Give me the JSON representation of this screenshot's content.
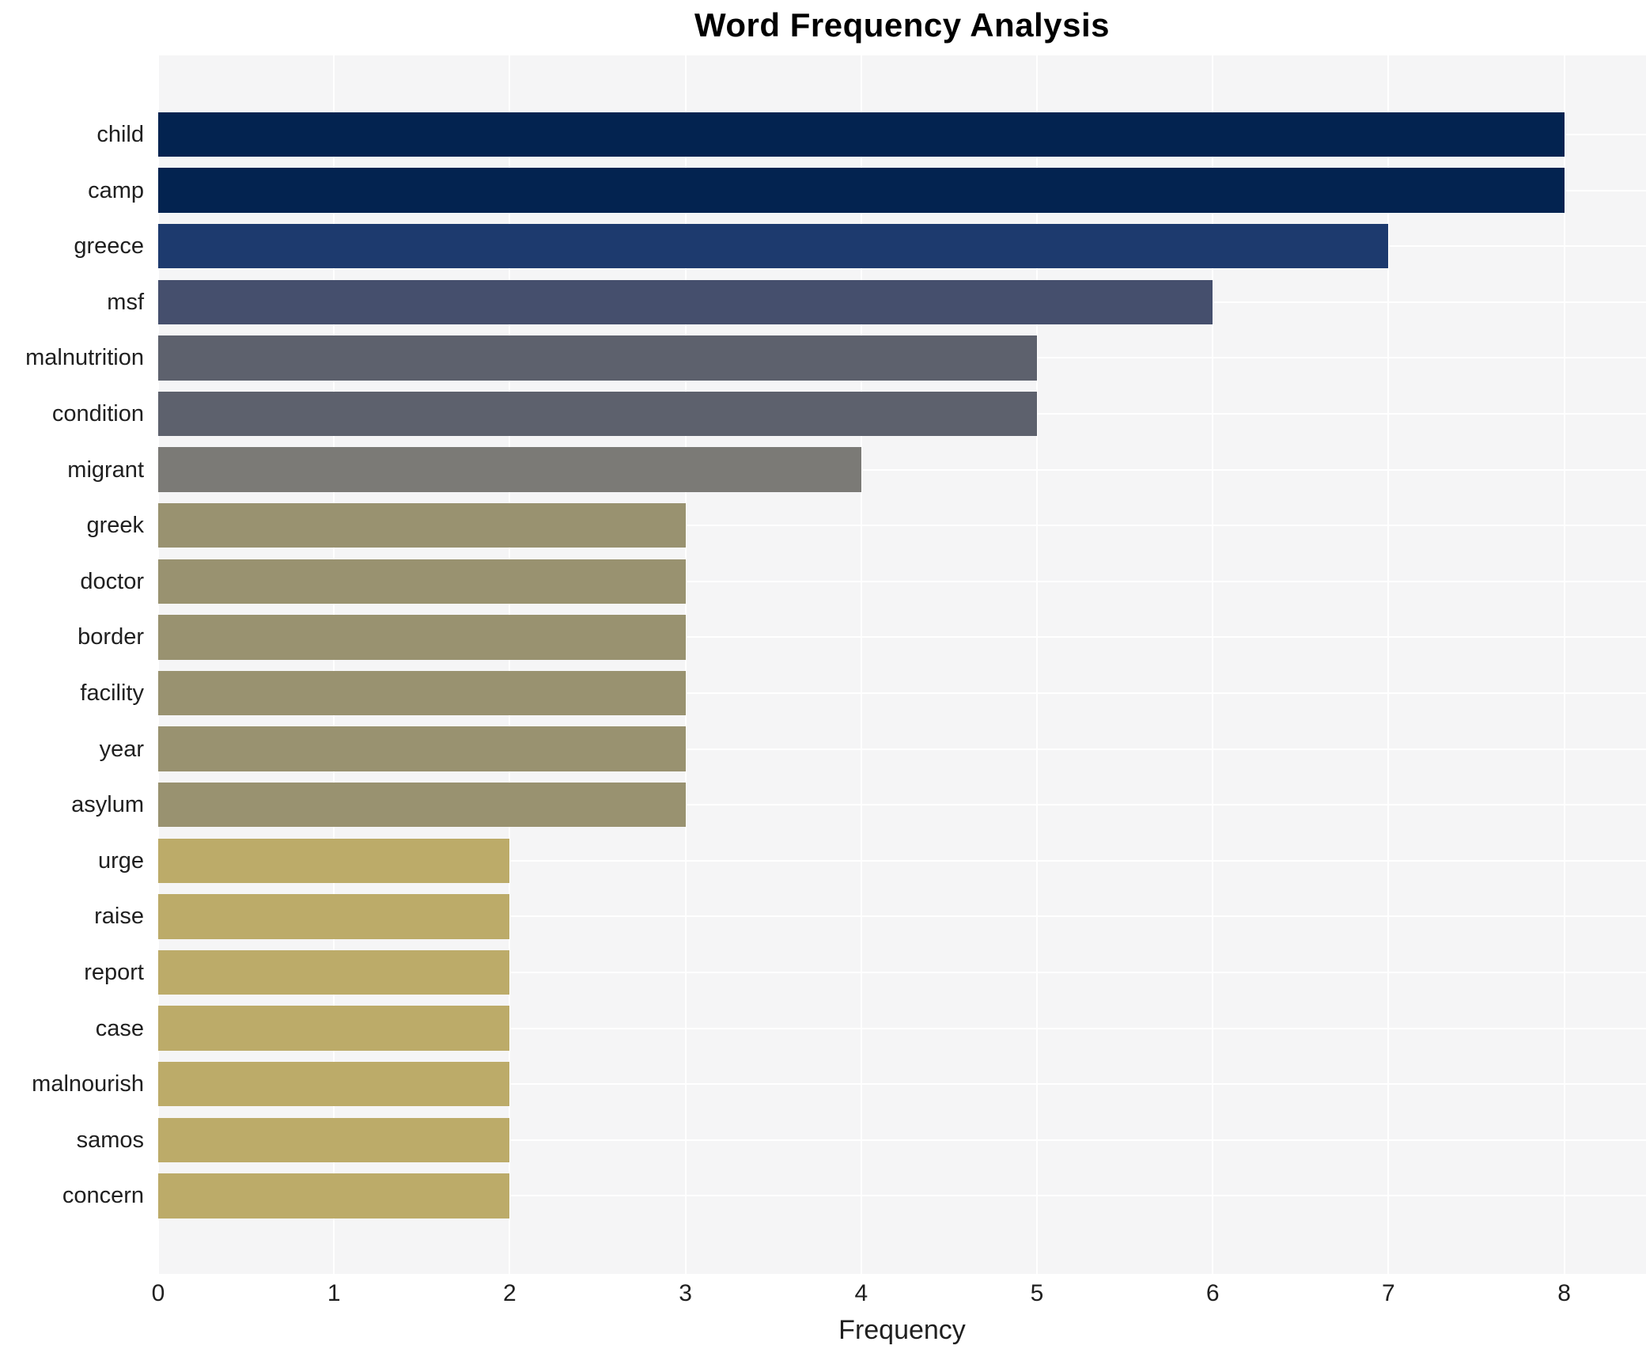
{
  "chart_data": {
    "type": "bar",
    "orientation": "horizontal",
    "title": "Word Frequency Analysis",
    "xlabel": "Frequency",
    "ylabel": "",
    "categories": [
      "child",
      "camp",
      "greece",
      "msf",
      "malnutrition",
      "condition",
      "migrant",
      "greek",
      "doctor",
      "border",
      "facility",
      "year",
      "asylum",
      "urge",
      "raise",
      "report",
      "case",
      "malnourish",
      "samos",
      "concern"
    ],
    "values": [
      8,
      8,
      7,
      6,
      5,
      5,
      4,
      3,
      3,
      3,
      3,
      3,
      3,
      2,
      2,
      2,
      2,
      2,
      2,
      2
    ],
    "bar_colors": [
      "#032350",
      "#032350",
      "#1d3a6e",
      "#454f6d",
      "#5d616d",
      "#5d616d",
      "#7b7a76",
      "#999270",
      "#999270",
      "#999270",
      "#999270",
      "#999270",
      "#999270",
      "#bcab69",
      "#bcab69",
      "#bcab69",
      "#bcab69",
      "#bcab69",
      "#bcab69",
      "#bcab69"
    ],
    "color_by_value": {
      "8": "#032350",
      "7": "#1d3a6e",
      "6": "#454f6d",
      "5": "#5d616d",
      "4": "#7b7a76",
      "3": "#999270",
      "2": "#bcab69"
    },
    "xticks": [
      0,
      1,
      2,
      3,
      4,
      5,
      6,
      7,
      8
    ],
    "xlim": [
      0,
      8.47
    ],
    "grid": "white gridlines on light plot background",
    "legend": false,
    "plot_bg_color": "#f5f5f6",
    "grid_color": "#ffffff",
    "text_color": "#1f1f1f"
  }
}
